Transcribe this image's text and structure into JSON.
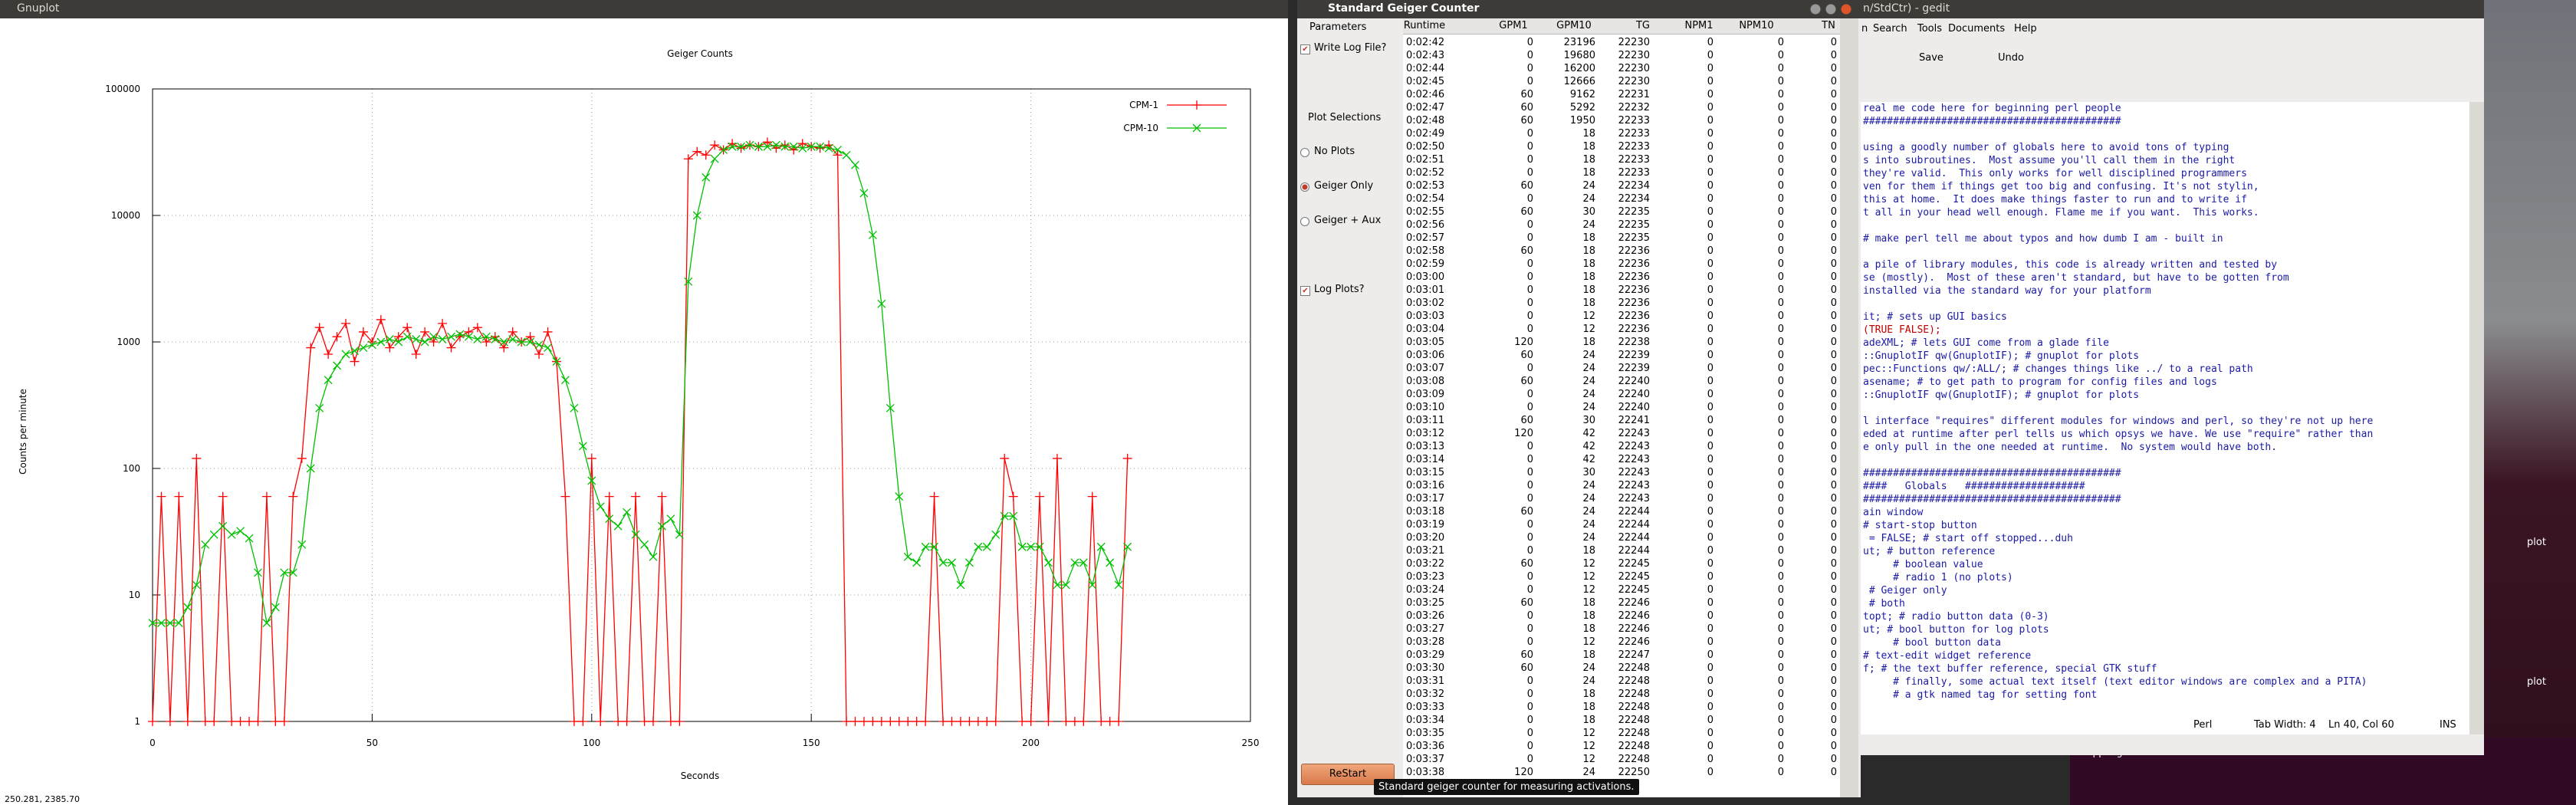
{
  "gnuplot_window": {
    "title": "Gnuplot",
    "status": "250.281, 2385.70"
  },
  "chart_data": {
    "type": "line",
    "title": "Geiger Counts",
    "xlabel": "Seconds",
    "ylabel": "Counts per minute",
    "log_y": true,
    "grid": true,
    "legend": "top-right",
    "x": [
      0,
      2,
      4,
      6,
      8,
      10,
      12,
      14,
      16,
      18,
      20,
      22,
      24,
      26,
      28,
      30,
      32,
      34,
      36,
      38,
      40,
      42,
      44,
      46,
      48,
      50,
      52,
      54,
      56,
      58,
      60,
      62,
      64,
      66,
      68,
      70,
      72,
      74,
      76,
      78,
      80,
      82,
      84,
      86,
      88,
      90,
      92,
      94,
      96,
      98,
      100,
      102,
      104,
      106,
      108,
      110,
      112,
      114,
      116,
      118,
      120,
      122,
      124,
      126,
      128,
      130,
      132,
      134,
      136,
      138,
      140,
      142,
      144,
      146,
      148,
      150,
      152,
      154,
      156,
      158,
      160,
      162,
      164,
      166,
      168,
      170,
      172,
      174,
      176,
      178,
      180,
      182,
      184,
      186,
      188,
      190,
      192,
      194,
      196,
      198,
      200,
      202,
      204,
      206,
      208,
      210,
      212,
      214,
      216,
      218,
      220,
      222
    ],
    "series": [
      {
        "name": "CPM-1",
        "color": "#ff0000",
        "marker": "plus",
        "values": [
          0,
          60,
          0,
          60,
          0,
          120,
          0,
          0,
          60,
          0,
          0,
          0,
          0,
          60,
          0,
          0,
          60,
          120,
          900,
          1300,
          800,
          1100,
          1400,
          700,
          1200,
          1000,
          1500,
          900,
          1100,
          1300,
          800,
          1200,
          1000,
          1400,
          900,
          1100,
          1200,
          1300,
          1000,
          1100,
          900,
          1200,
          1000,
          1100,
          800,
          1200,
          700,
          60,
          0,
          0,
          120,
          0,
          60,
          0,
          0,
          60,
          0,
          0,
          60,
          0,
          0,
          28000,
          32000,
          30000,
          36000,
          33000,
          37000,
          34000,
          36000,
          35000,
          38000,
          34000,
          36000,
          33000,
          37000,
          35000,
          34000,
          36000,
          30000,
          0,
          0,
          0,
          0,
          0,
          0,
          0,
          0,
          0,
          0,
          60,
          0,
          0,
          0,
          0,
          0,
          0,
          0,
          120,
          60,
          0,
          0,
          60,
          0,
          120,
          0,
          0,
          0,
          60,
          0,
          0,
          0,
          120
        ]
      },
      {
        "name": "CPM-10",
        "color": "#00c000",
        "marker": "cross",
        "values": [
          6,
          6,
          6,
          6,
          8,
          12,
          25,
          30,
          35,
          30,
          32,
          28,
          15,
          6,
          8,
          15,
          15,
          25,
          100,
          300,
          500,
          650,
          800,
          850,
          900,
          950,
          1000,
          1050,
          1000,
          1100,
          1050,
          1000,
          1100,
          1050,
          1100,
          1150,
          1100,
          1050,
          1100,
          1050,
          1000,
          1050,
          1000,
          1000,
          950,
          900,
          700,
          500,
          300,
          150,
          80,
          50,
          40,
          35,
          45,
          30,
          25,
          20,
          35,
          40,
          30,
          3000,
          10000,
          20000,
          28000,
          33000,
          35000,
          35000,
          36000,
          35000,
          35000,
          36000,
          35000,
          35000,
          34000,
          35000,
          35000,
          34000,
          33000,
          30000,
          25000,
          15000,
          7000,
          2000,
          300,
          60,
          20,
          18,
          24,
          24,
          18,
          18,
          12,
          18,
          24,
          24,
          30,
          42,
          42,
          24,
          24,
          24,
          18,
          12,
          12,
          18,
          18,
          12,
          24,
          18,
          12,
          24
        ]
      }
    ],
    "xlim": [
      0,
      250
    ],
    "xticks": [
      0,
      50,
      100,
      150,
      200,
      250
    ],
    "ylim": [
      1,
      100000
    ],
    "yticks": [
      1,
      10,
      100,
      1000,
      10000,
      100000
    ]
  },
  "geiger_window": {
    "title": "Standard Geiger Counter",
    "parameters_label": "Parameters",
    "write_log": "Write Log File?",
    "plot_selections": "Plot Selections",
    "options": [
      "No Plots",
      "Geiger Only",
      "Geiger + Aux"
    ],
    "log_plots": "Log Plots?",
    "button": "ReStart",
    "tooltip": "Standard geiger counter for measuring activations.",
    "table": {
      "columns": [
        "Runtime",
        "GPM1",
        "GPM10",
        "TG",
        "NPM1",
        "NPM10",
        "TN"
      ],
      "rows": [
        [
          "0:02:42",
          0,
          23196,
          22230,
          0,
          0,
          0
        ],
        [
          "0:02:43",
          0,
          19680,
          22230,
          0,
          0,
          0
        ],
        [
          "0:02:44",
          0,
          16200,
          22230,
          0,
          0,
          0
        ],
        [
          "0:02:45",
          0,
          12666,
          22230,
          0,
          0,
          0
        ],
        [
          "0:02:46",
          60,
          9162,
          22231,
          0,
          0,
          0
        ],
        [
          "0:02:47",
          60,
          5292,
          22232,
          0,
          0,
          0
        ],
        [
          "0:02:48",
          60,
          1950,
          22233,
          0,
          0,
          0
        ],
        [
          "0:02:49",
          0,
          18,
          22233,
          0,
          0,
          0
        ],
        [
          "0:02:50",
          0,
          18,
          22233,
          0,
          0,
          0
        ],
        [
          "0:02:51",
          0,
          18,
          22233,
          0,
          0,
          0
        ],
        [
          "0:02:52",
          0,
          18,
          22233,
          0,
          0,
          0
        ],
        [
          "0:02:53",
          60,
          24,
          22234,
          0,
          0,
          0
        ],
        [
          "0:02:54",
          0,
          24,
          22234,
          0,
          0,
          0
        ],
        [
          "0:02:55",
          60,
          30,
          22235,
          0,
          0,
          0
        ],
        [
          "0:02:56",
          0,
          24,
          22235,
          0,
          0,
          0
        ],
        [
          "0:02:57",
          0,
          18,
          22235,
          0,
          0,
          0
        ],
        [
          "0:02:58",
          60,
          18,
          22236,
          0,
          0,
          0
        ],
        [
          "0:02:59",
          0,
          18,
          22236,
          0,
          0,
          0
        ],
        [
          "0:03:00",
          0,
          18,
          22236,
          0,
          0,
          0
        ],
        [
          "0:03:01",
          0,
          18,
          22236,
          0,
          0,
          0
        ],
        [
          "0:03:02",
          0,
          18,
          22236,
          0,
          0,
          0
        ],
        [
          "0:03:03",
          0,
          12,
          22236,
          0,
          0,
          0
        ],
        [
          "0:03:04",
          0,
          12,
          22236,
          0,
          0,
          0
        ],
        [
          "0:03:05",
          120,
          18,
          22238,
          0,
          0,
          0
        ],
        [
          "0:03:06",
          60,
          24,
          22239,
          0,
          0,
          0
        ],
        [
          "0:03:07",
          0,
          24,
          22239,
          0,
          0,
          0
        ],
        [
          "0:03:08",
          60,
          24,
          22240,
          0,
          0,
          0
        ],
        [
          "0:03:09",
          0,
          24,
          22240,
          0,
          0,
          0
        ],
        [
          "0:03:10",
          0,
          24,
          22240,
          0,
          0,
          0
        ],
        [
          "0:03:11",
          60,
          30,
          22241,
          0,
          0,
          0
        ],
        [
          "0:03:12",
          120,
          42,
          22243,
          0,
          0,
          0
        ],
        [
          "0:03:13",
          0,
          42,
          22243,
          0,
          0,
          0
        ],
        [
          "0:03:14",
          0,
          42,
          22243,
          0,
          0,
          0
        ],
        [
          "0:03:15",
          0,
          30,
          22243,
          0,
          0,
          0
        ],
        [
          "0:03:16",
          0,
          24,
          22243,
          0,
          0,
          0
        ],
        [
          "0:03:17",
          0,
          24,
          22243,
          0,
          0,
          0
        ],
        [
          "0:03:18",
          60,
          24,
          22244,
          0,
          0,
          0
        ],
        [
          "0:03:19",
          0,
          24,
          22244,
          0,
          0,
          0
        ],
        [
          "0:03:20",
          0,
          24,
          22244,
          0,
          0,
          0
        ],
        [
          "0:03:21",
          0,
          18,
          22244,
          0,
          0,
          0
        ],
        [
          "0:03:22",
          60,
          12,
          22245,
          0,
          0,
          0
        ],
        [
          "0:03:23",
          0,
          12,
          22245,
          0,
          0,
          0
        ],
        [
          "0:03:24",
          0,
          12,
          22245,
          0,
          0,
          0
        ],
        [
          "0:03:25",
          60,
          18,
          22246,
          0,
          0,
          0
        ],
        [
          "0:03:26",
          0,
          18,
          22246,
          0,
          0,
          0
        ],
        [
          "0:03:27",
          0,
          18,
          22246,
          0,
          0,
          0
        ],
        [
          "0:03:28",
          0,
          12,
          22246,
          0,
          0,
          0
        ],
        [
          "0:03:29",
          60,
          18,
          22247,
          0,
          0,
          0
        ],
        [
          "0:03:30",
          60,
          24,
          22248,
          0,
          0,
          0
        ],
        [
          "0:03:31",
          0,
          24,
          22248,
          0,
          0,
          0
        ],
        [
          "0:03:32",
          0,
          18,
          22248,
          0,
          0,
          0
        ],
        [
          "0:03:33",
          0,
          18,
          22248,
          0,
          0,
          0
        ],
        [
          "0:03:34",
          0,
          18,
          22248,
          0,
          0,
          0
        ],
        [
          "0:03:35",
          0,
          12,
          22248,
          0,
          0,
          0
        ],
        [
          "0:03:36",
          0,
          12,
          22248,
          0,
          0,
          0
        ],
        [
          "0:03:37",
          0,
          12,
          22248,
          0,
          0,
          0
        ],
        [
          "0:03:38",
          120,
          24,
          22250,
          0,
          0,
          0
        ]
      ]
    }
  },
  "gedit_window": {
    "title": "n/StdCtr) - gedit",
    "menu": [
      "n",
      "Search",
      "Tools",
      "Documents",
      "Help"
    ],
    "toolbar": [
      "Save",
      "Undo"
    ],
    "lines": [
      "real me code here for beginning perl people",
      "###########################################",
      "",
      "using a goodly number of globals here to avoid tons of typing",
      "s into subroutines.  Most assume you'll call them in the right",
      "they're valid.  This only works for well disciplined programmers",
      "ven for them if things get too big and confusing. It's not stylin,",
      "this at home.  It does make things faster to run and to write if",
      "t all in your head well enough. Flame me if you want.  This works.",
      "",
      "# make perl tell me about typos and how dumb I am - built in",
      "",
      "a pile of library modules, this code is already written and tested by",
      "se (mostly).  Most of these aren't standard, but have to be gotten from",
      "installed via the standard way for your platform",
      "",
      "it; # sets up GUI basics",
      "(TRUE FALSE);",
      "adeXML; # lets GUI come from a glade file",
      "::GnuplotIF qw(GnuplotIF); # gnuplot for plots",
      "pec::Functions qw/:ALL/; # changes things like ../ to a real path",
      "asename; # to get path to program for config files and logs",
      "::GnuplotIF qw(GnuplotIF); # gnuplot for plots",
      "",
      "l interface \"requires\" different modules for windows and perl, so they're not up here",
      "eded at runtime after perl tells us which opsys we have. We use \"require\" rather than",
      "e only pull in the one needed at runtime.  No system would have both.",
      "",
      "###########################################",
      "####   Globals   ####################",
      "###########################################",
      "ain window",
      "# start-stop button",
      " = FALSE; # start off stopped...duh",
      "ut; # button reference",
      "     # boolean value",
      "     # radio 1 (no plots)",
      " # Geiger only",
      " # both",
      "topt; # radio button data (0-3)",
      "ut; # bool button for log plots",
      "     # bool button data",
      "# text-edit widget reference",
      "f; # the text buffer reference, special GTK stuff",
      "     # finally, some actual text itself (text editor windows are complex and a PITA)",
      "     # a gtk named tag for setting font"
    ],
    "status": [
      "Perl",
      "Tab Width: 4",
      "Ln 40, Col 60",
      "INS"
    ]
  },
  "desktop": {
    "labels": [
      "plot",
      "plot"
    ],
    "terminal": "Stopping"
  }
}
